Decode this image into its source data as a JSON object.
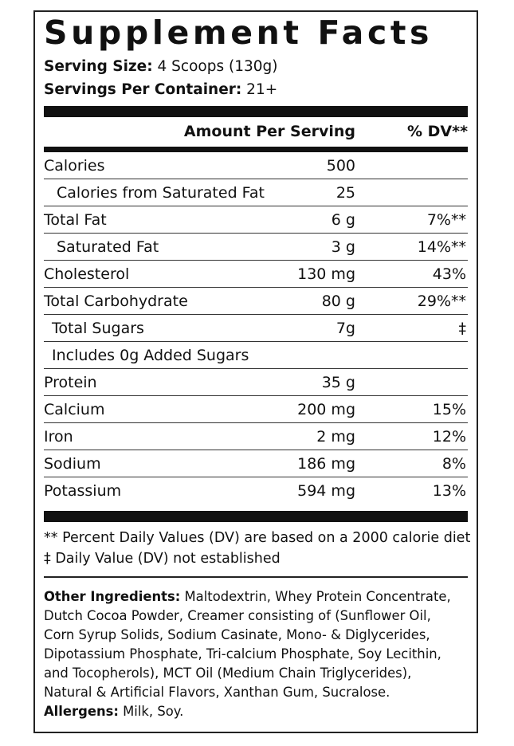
{
  "title": "Supplement Facts",
  "serving": {
    "size_label": "Serving Size:",
    "size_value": " 4 Scoops (130g)",
    "per_container_label": "Servings Per Container:",
    "per_container_value": " 21+"
  },
  "header": {
    "amount_label": "Amount Per Serving",
    "dv_label": "% DV**"
  },
  "rows": [
    {
      "name": "Calories",
      "amount": "500",
      "dv": ""
    },
    {
      "name": "Calories from Saturated Fat",
      "amount": "25",
      "dv": ""
    },
    {
      "name": "Total Fat",
      "amount": "6 g",
      "dv": "7%**"
    },
    {
      "name": "Saturated Fat",
      "amount": "3 g",
      "dv": "14%**"
    },
    {
      "name": "Cholesterol",
      "amount": "130 mg",
      "dv": "43%"
    },
    {
      "name": "Total Carbohydrate",
      "amount": "80 g",
      "dv": "29%**"
    },
    {
      "name": "Total Sugars",
      "amount": "7g",
      "dv": "‡"
    },
    {
      "name": "Includes 0g Added Sugars",
      "amount": "",
      "dv": ""
    },
    {
      "name": "Protein",
      "amount": "35 g",
      "dv": ""
    },
    {
      "name": "Calcium",
      "amount": "200 mg",
      "dv": "15%"
    },
    {
      "name": "Iron",
      "amount": "2 mg",
      "dv": "12%"
    },
    {
      "name": "Sodium",
      "amount": "186 mg",
      "dv": "8%"
    },
    {
      "name": "Potassium",
      "amount": "594 mg",
      "dv": "13%"
    }
  ],
  "footnotes": {
    "dv_note": "** Percent Daily Values (DV) are based on a 2000 calorie diet",
    "not_established": "‡ Daily Value (DV) not established"
  },
  "ingredients": {
    "label": "Other Ingredients:",
    "lines": [
      " Maltodextrin, Whey Protein Concentrate,",
      "Dutch Cocoa Powder, Creamer consisting of (Sunflower Oil,",
      "Corn Syrup Solids, Sodium Casinate, Mono- & Diglycerides,",
      "Dipotassium Phosphate, Tri-calcium Phosphate, Soy Lecithin,",
      "and Tocopherols), MCT Oil (Medium Chain Triglycerides),",
      "Natural & Artificial Flavors, Xanthan Gum, Sucralose."
    ],
    "allergens_label": "Allergens:",
    "allergens_value": " Milk, Soy."
  }
}
